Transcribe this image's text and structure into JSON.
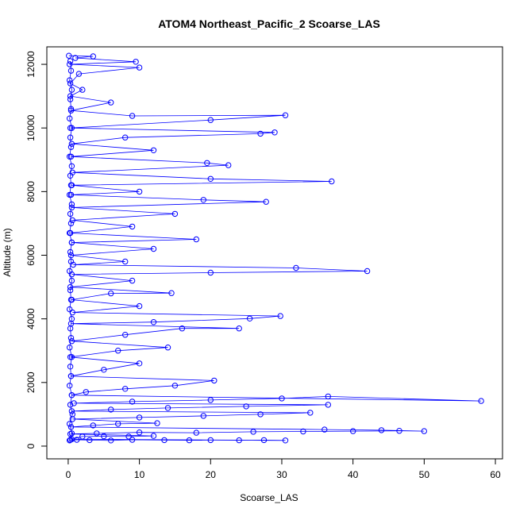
{
  "chart_data": {
    "type": "line",
    "title": "ATOM4 Northeast_Pacific_2 Scoarse_LAS",
    "xlabel": "Scoarse_LAS",
    "ylabel": "Altitude (m)",
    "xlim": [
      -3,
      61
    ],
    "ylim": [
      -400,
      12550
    ],
    "x_ticks": [
      0,
      10,
      20,
      30,
      40,
      50,
      60
    ],
    "y_ticks": [
      0,
      2000,
      4000,
      6000,
      8000,
      10000,
      12000
    ],
    "grid": false,
    "legend": "none",
    "color": "#0000ff",
    "marker": "open-circle",
    "series": [
      {
        "values": [
          [
            0.2,
            180
          ],
          [
            1.2,
            200
          ],
          [
            3.0,
            190
          ],
          [
            6.0,
            180
          ],
          [
            9.0,
            200
          ],
          [
            13.5,
            190
          ],
          [
            17.0,
            185
          ],
          [
            20.0,
            190
          ],
          [
            24.0,
            185
          ],
          [
            27.5,
            190
          ],
          [
            30.5,
            180
          ],
          [
            0.5,
            220
          ],
          [
            2.0,
            300
          ],
          [
            5.0,
            310
          ],
          [
            8.5,
            300
          ],
          [
            12.0,
            320
          ],
          [
            0.3,
            380
          ],
          [
            4.0,
            400
          ],
          [
            10.0,
            430
          ],
          [
            18.0,
            420
          ],
          [
            26.0,
            450
          ],
          [
            33.0,
            460
          ],
          [
            40.0,
            470
          ],
          [
            46.5,
            480
          ],
          [
            50.0,
            470
          ],
          [
            44.0,
            500
          ],
          [
            36.0,
            520
          ],
          [
            0.4,
            600
          ],
          [
            3.5,
            650
          ],
          [
            7.0,
            700
          ],
          [
            12.5,
            720
          ],
          [
            0.6,
            850
          ],
          [
            10.0,
            900
          ],
          [
            19.0,
            950
          ],
          [
            27.0,
            1000
          ],
          [
            34.0,
            1050
          ],
          [
            0.5,
            1100
          ],
          [
            6.0,
            1150
          ],
          [
            14.0,
            1200
          ],
          [
            25.0,
            1250
          ],
          [
            36.5,
            1300
          ],
          [
            0.8,
            1350
          ],
          [
            9.0,
            1400
          ],
          [
            20.0,
            1450
          ],
          [
            30.0,
            1500
          ],
          [
            36.5,
            1560
          ],
          [
            58.0,
            1420
          ],
          [
            0.5,
            1600
          ],
          [
            2.5,
            1700
          ],
          [
            8.0,
            1800
          ],
          [
            15.0,
            1900
          ],
          [
            20.5,
            2060
          ],
          [
            0.4,
            2200
          ],
          [
            5.0,
            2400
          ],
          [
            10.0,
            2600
          ],
          [
            0.3,
            2800
          ],
          [
            7.0,
            3000
          ],
          [
            14.0,
            3100
          ],
          [
            0.5,
            3300
          ],
          [
            8.0,
            3500
          ],
          [
            16.0,
            3700
          ],
          [
            24.0,
            3700
          ],
          [
            0.4,
            3850
          ],
          [
            12.0,
            3900
          ],
          [
            25.5,
            4010
          ],
          [
            29.8,
            4090
          ],
          [
            0.6,
            4200
          ],
          [
            10.0,
            4400
          ],
          [
            0.5,
            4600
          ],
          [
            6.0,
            4800
          ],
          [
            14.5,
            4810
          ],
          [
            0.3,
            5000
          ],
          [
            9.0,
            5200
          ],
          [
            0.5,
            5400
          ],
          [
            20.0,
            5450
          ],
          [
            42.0,
            5500
          ],
          [
            32.0,
            5600
          ],
          [
            0.7,
            5700
          ],
          [
            8.0,
            5800
          ],
          [
            0.4,
            6000
          ],
          [
            12.0,
            6200
          ],
          [
            0.5,
            6400
          ],
          [
            18.0,
            6500
          ],
          [
            0.3,
            6700
          ],
          [
            9.0,
            6900
          ],
          [
            0.6,
            7100
          ],
          [
            15.0,
            7300
          ],
          [
            0.5,
            7500
          ],
          [
            27.8,
            7680
          ],
          [
            19.0,
            7740
          ],
          [
            0.4,
            7900
          ],
          [
            10.0,
            8000
          ],
          [
            0.5,
            8200
          ],
          [
            37.0,
            8320
          ],
          [
            20.0,
            8400
          ],
          [
            0.6,
            8600
          ],
          [
            22.5,
            8830
          ],
          [
            19.5,
            8900
          ],
          [
            0.4,
            9100
          ],
          [
            12.0,
            9300
          ],
          [
            0.5,
            9500
          ],
          [
            8.0,
            9700
          ],
          [
            27.0,
            9820
          ],
          [
            29.0,
            9860
          ],
          [
            0.3,
            10000
          ],
          [
            20.0,
            10250
          ],
          [
            30.5,
            10400
          ],
          [
            9.0,
            10380
          ],
          [
            0.4,
            10550
          ],
          [
            6.0,
            10800
          ],
          [
            0.3,
            11000
          ],
          [
            2.0,
            11200
          ],
          [
            0.3,
            11400
          ],
          [
            1.5,
            11700
          ],
          [
            10.0,
            11900
          ],
          [
            0.2,
            12000
          ],
          [
            9.5,
            12080
          ],
          [
            1.0,
            12200
          ],
          [
            3.5,
            12250
          ],
          [
            0.1,
            12270
          ]
        ]
      },
      {
        "values": [
          [
            0.3,
            200
          ],
          [
            0.5,
            400
          ],
          [
            0.2,
            700
          ],
          [
            0.6,
            1000
          ],
          [
            0.3,
            1300
          ],
          [
            0.5,
            1600
          ],
          [
            0.2,
            1900
          ],
          [
            0.4,
            2200
          ],
          [
            0.3,
            2500
          ],
          [
            0.5,
            2800
          ],
          [
            0.2,
            3100
          ],
          [
            0.4,
            3400
          ],
          [
            0.3,
            3700
          ],
          [
            0.5,
            4000
          ],
          [
            0.2,
            4300
          ],
          [
            0.4,
            4600
          ],
          [
            0.3,
            4900
          ],
          [
            0.5,
            5200
          ],
          [
            0.2,
            5500
          ],
          [
            0.4,
            5800
          ],
          [
            0.3,
            6100
          ],
          [
            0.5,
            6400
          ],
          [
            0.2,
            6700
          ],
          [
            0.4,
            7000
          ],
          [
            0.3,
            7300
          ],
          [
            0.5,
            7600
          ],
          [
            0.2,
            7900
          ],
          [
            0.4,
            8200
          ],
          [
            0.3,
            8500
          ],
          [
            0.5,
            8800
          ],
          [
            0.2,
            9100
          ],
          [
            0.4,
            9400
          ],
          [
            0.3,
            9700
          ],
          [
            0.5,
            10000
          ],
          [
            0.2,
            10300
          ],
          [
            0.4,
            10600
          ],
          [
            0.3,
            10900
          ],
          [
            0.5,
            11200
          ],
          [
            0.2,
            11500
          ],
          [
            0.4,
            11800
          ],
          [
            0.3,
            12100
          ]
        ]
      }
    ]
  }
}
